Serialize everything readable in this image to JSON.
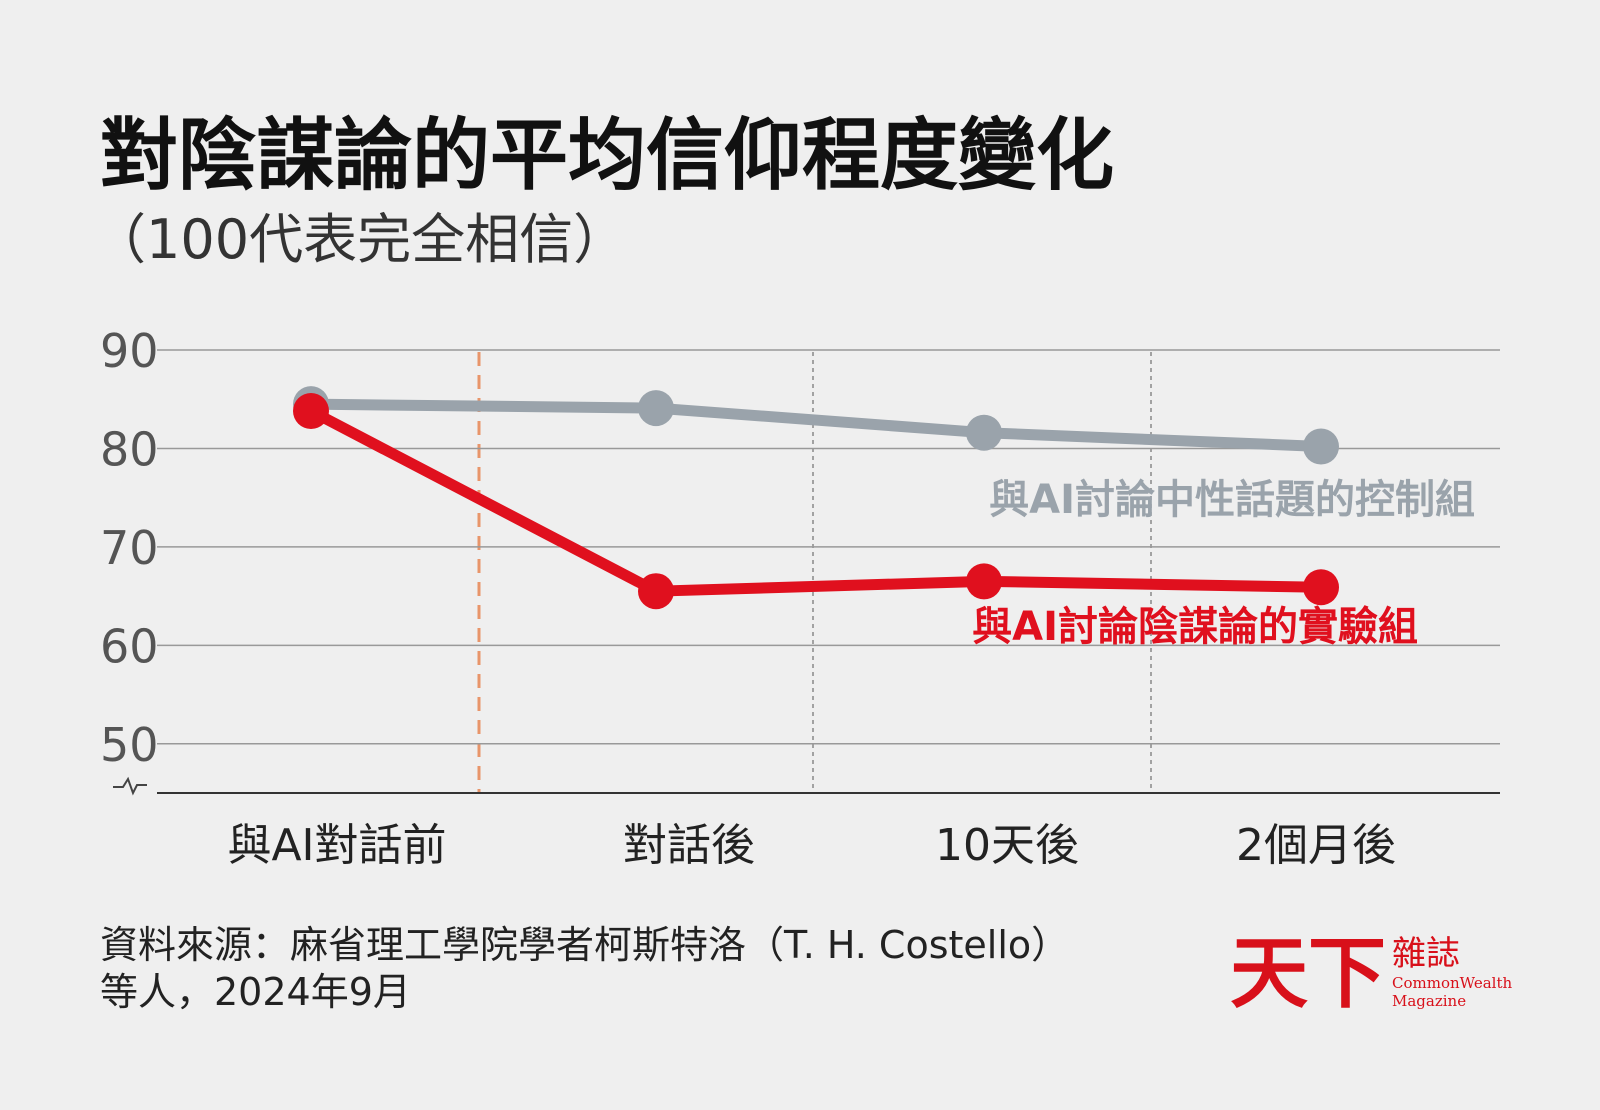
{
  "chart_data": {
    "type": "line",
    "title": "對陰謀論的平均信仰程度變化",
    "subtitle": "（100代表完全相信）",
    "categories": [
      "與AI對話前",
      "對話後",
      "10天後",
      "2個月後"
    ],
    "series": [
      {
        "name": "與AI討論中性話題的控制組",
        "color": "#9aa3ab",
        "values": [
          84.5,
          84.1,
          81.6,
          80.2
        ]
      },
      {
        "name": "與AI討論陰謀論的實驗組",
        "color": "#e0101e",
        "values": [
          83.8,
          65.5,
          66.5,
          65.9
        ]
      }
    ],
    "ylim": [
      45,
      90
    ],
    "yticks": [
      50,
      60,
      70,
      80,
      90
    ],
    "grid": true,
    "source": [
      "資料來源：麻省理工學院學者柯斯特洛（T. H. Costello）",
      "等人，2024年9月"
    ],
    "logo": {
      "main": "天下",
      "sub": "雜誌",
      "en": [
        "CommonWealth",
        "Magazine"
      ]
    }
  }
}
